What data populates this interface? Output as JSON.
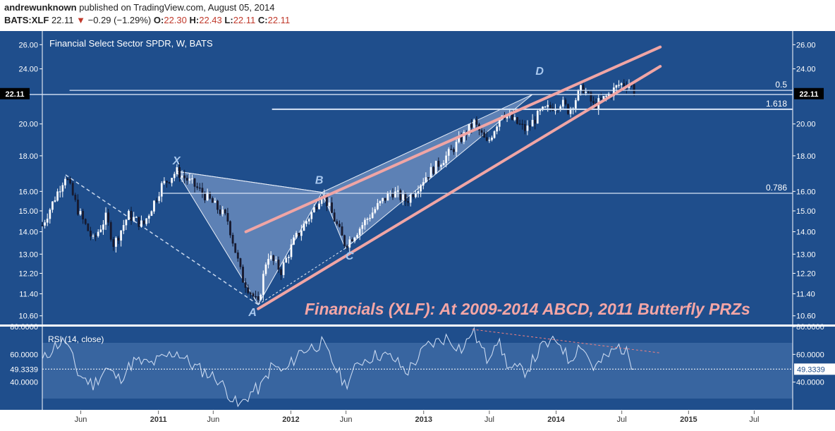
{
  "header": {
    "user": "andrewunknown",
    "published_text": "published on TradingView.com, August 05, 2014",
    "symbol": "BATS:XLF",
    "last": "22.11",
    "change": "−0.29 (−1.29%)",
    "o_label": "O:",
    "o_value": "22.30",
    "h_label": "H:",
    "h_value": "22.43",
    "l_label": "L:",
    "l_value": "22.11",
    "c_label": "C:",
    "c_value": "22.11"
  },
  "colors": {
    "background": "#1f4e8c",
    "panel_band": "#4a74ad",
    "candle_up": "#ffffff",
    "candle_down": "#1a1a2e",
    "trendline": "#f0a5a5",
    "pattern_fill": "#a9c2e6",
    "annotation": "#f4a6a6",
    "level_line": "#d8e4f5"
  },
  "chart_data": [
    {
      "type": "candlestick",
      "title": "Financial Select Sector SPDR, W, BATS",
      "annotation": "Financials (XLF): At 2009-2014 ABCD, 2011 Butterfly PRZs",
      "y_scale": "log",
      "ylim": [
        10.3,
        27.2
      ],
      "x_range": [
        "2010-02-15",
        "2015-10-15"
      ],
      "x_tick_labels": [
        {
          "label": "Jun",
          "date": "2010-06-01"
        },
        {
          "label": "2011",
          "date": "2011-01-01"
        },
        {
          "label": "Jun",
          "date": "2011-06-01"
        },
        {
          "label": "2012",
          "date": "2012-01-01"
        },
        {
          "label": "Jun",
          "date": "2012-06-01"
        },
        {
          "label": "2013",
          "date": "2013-01-01"
        },
        {
          "label": "Jul",
          "date": "2013-07-01"
        },
        {
          "label": "2014",
          "date": "2014-01-01"
        },
        {
          "label": "Jul",
          "date": "2014-07-01"
        },
        {
          "label": "2015",
          "date": "2015-01-01"
        },
        {
          "label": "Jul",
          "date": "2015-07-01"
        }
      ],
      "y_tick_labels": [
        "26.00",
        "24.00",
        "20.00",
        "18.00",
        "16.00",
        "15.00",
        "14.00",
        "13.00",
        "12.20",
        "11.40",
        "10.60"
      ],
      "last_price_label": "22.11",
      "last_price": 22.11,
      "price_path": [
        [
          "2010-02-15",
          14.3
        ],
        [
          "2010-04-20",
          16.9
        ],
        [
          "2010-05-25",
          15.0
        ],
        [
          "2010-07-05",
          13.6
        ],
        [
          "2010-08-10",
          14.7
        ],
        [
          "2010-08-31",
          13.4
        ],
        [
          "2010-10-10",
          14.8
        ],
        [
          "2010-11-20",
          14.3
        ],
        [
          "2011-01-10",
          16.3
        ],
        [
          "2011-02-20",
          17.1
        ],
        [
          "2011-04-05",
          16.4
        ],
        [
          "2011-05-20",
          15.6
        ],
        [
          "2011-07-10",
          14.6
        ],
        [
          "2011-08-20",
          12.0
        ],
        [
          "2011-10-03",
          11.0
        ],
        [
          "2011-10-28",
          13.0
        ],
        [
          "2011-12-05",
          12.3
        ],
        [
          "2012-01-10",
          13.6
        ],
        [
          "2012-03-05",
          15.1
        ],
        [
          "2012-03-27",
          15.95
        ],
        [
          "2012-04-20",
          15.0
        ],
        [
          "2012-05-30",
          13.4
        ],
        [
          "2012-07-10",
          14.2
        ],
        [
          "2012-08-25",
          15.2
        ],
        [
          "2012-10-05",
          16.0
        ],
        [
          "2012-11-15",
          15.5
        ],
        [
          "2013-01-10",
          16.9
        ],
        [
          "2013-03-15",
          18.2
        ],
        [
          "2013-05-20",
          20.1
        ],
        [
          "2013-06-25",
          18.7
        ],
        [
          "2013-08-05",
          20.8
        ],
        [
          "2013-10-10",
          19.6
        ],
        [
          "2013-11-20",
          20.8
        ],
        [
          "2014-01-15",
          21.5
        ],
        [
          "2014-02-05",
          20.9
        ],
        [
          "2014-03-15",
          22.6
        ],
        [
          "2014-04-15",
          21.2
        ],
        [
          "2014-05-20",
          21.9
        ],
        [
          "2014-06-25",
          22.8
        ],
        [
          "2014-07-25",
          22.9
        ],
        [
          "2014-08-05",
          22.11
        ]
      ],
      "levels": [
        {
          "label": "0.5",
          "value": 22.35
        },
        {
          "value": 22.05
        },
        {
          "label": "1.618",
          "value": 21.0
        },
        {
          "label": "0.786",
          "value": 15.9
        }
      ],
      "butterfly_points": [
        {
          "label": "X",
          "date": "2011-02-20",
          "value": 17.1
        },
        {
          "label": "A",
          "date": "2011-10-03",
          "value": 11.0
        },
        {
          "label": "B",
          "date": "2012-03-27",
          "value": 15.95
        },
        {
          "label": "C",
          "date": "2012-05-30",
          "value": 13.25
        },
        {
          "label": "D",
          "date": "2013-10-28",
          "value": 22.05
        }
      ],
      "wedge_lines": [
        {
          "from": [
            "2011-10-03",
            10.85
          ],
          "to": [
            "2014-10-15",
            24.2
          ]
        },
        {
          "from": [
            "2011-08-30",
            14.0
          ],
          "to": [
            "2014-10-15",
            25.8
          ]
        }
      ],
      "dashed_line": {
        "from": [
          "2010-04-20",
          16.9
        ],
        "to": [
          "2011-10-03",
          11.0
        ]
      }
    },
    {
      "type": "line",
      "title": "RSI (14, close)",
      "ylim": [
        20,
        80
      ],
      "y_tick_labels": [
        "80.0000",
        "60.0000",
        "40.0000"
      ],
      "band": [
        30,
        70
      ],
      "last_value_label": "49.3339",
      "last_value": 49.3339,
      "rsi_path": [
        [
          "2010-02-15",
          55
        ],
        [
          "2010-03-20",
          66
        ],
        [
          "2010-04-20",
          70
        ],
        [
          "2010-05-25",
          46
        ],
        [
          "2010-07-05",
          38
        ],
        [
          "2010-08-10",
          50
        ],
        [
          "2010-09-15",
          42
        ],
        [
          "2010-10-25",
          55
        ],
        [
          "2010-12-10",
          53
        ],
        [
          "2011-02-20",
          62
        ],
        [
          "2011-04-05",
          52
        ],
        [
          "2011-06-15",
          42
        ],
        [
          "2011-08-10",
          22
        ],
        [
          "2011-09-15",
          33
        ],
        [
          "2011-10-10",
          36
        ],
        [
          "2011-11-10",
          52
        ],
        [
          "2011-12-15",
          47
        ],
        [
          "2012-01-25",
          62
        ],
        [
          "2012-03-27",
          68
        ],
        [
          "2012-05-30",
          38
        ],
        [
          "2012-07-10",
          55
        ],
        [
          "2012-08-30",
          60
        ],
        [
          "2012-10-10",
          57
        ],
        [
          "2012-11-15",
          47
        ],
        [
          "2013-01-10",
          66
        ],
        [
          "2013-03-05",
          72
        ],
        [
          "2013-04-20",
          63
        ],
        [
          "2013-05-15",
          78
        ],
        [
          "2013-06-25",
          56
        ],
        [
          "2013-07-20",
          72
        ],
        [
          "2013-08-25",
          50
        ],
        [
          "2013-10-10",
          48
        ],
        [
          "2013-11-25",
          66
        ],
        [
          "2014-01-10",
          70
        ],
        [
          "2014-02-05",
          55
        ],
        [
          "2014-03-10",
          68
        ],
        [
          "2014-04-15",
          50
        ],
        [
          "2014-05-20",
          58
        ],
        [
          "2014-06-25",
          66
        ],
        [
          "2014-07-20",
          59
        ],
        [
          "2014-08-05",
          49.33
        ]
      ],
      "divergence_line": {
        "from": [
          "2013-05-15",
          78
        ],
        "to": [
          "2014-10-15",
          61
        ]
      }
    }
  ]
}
